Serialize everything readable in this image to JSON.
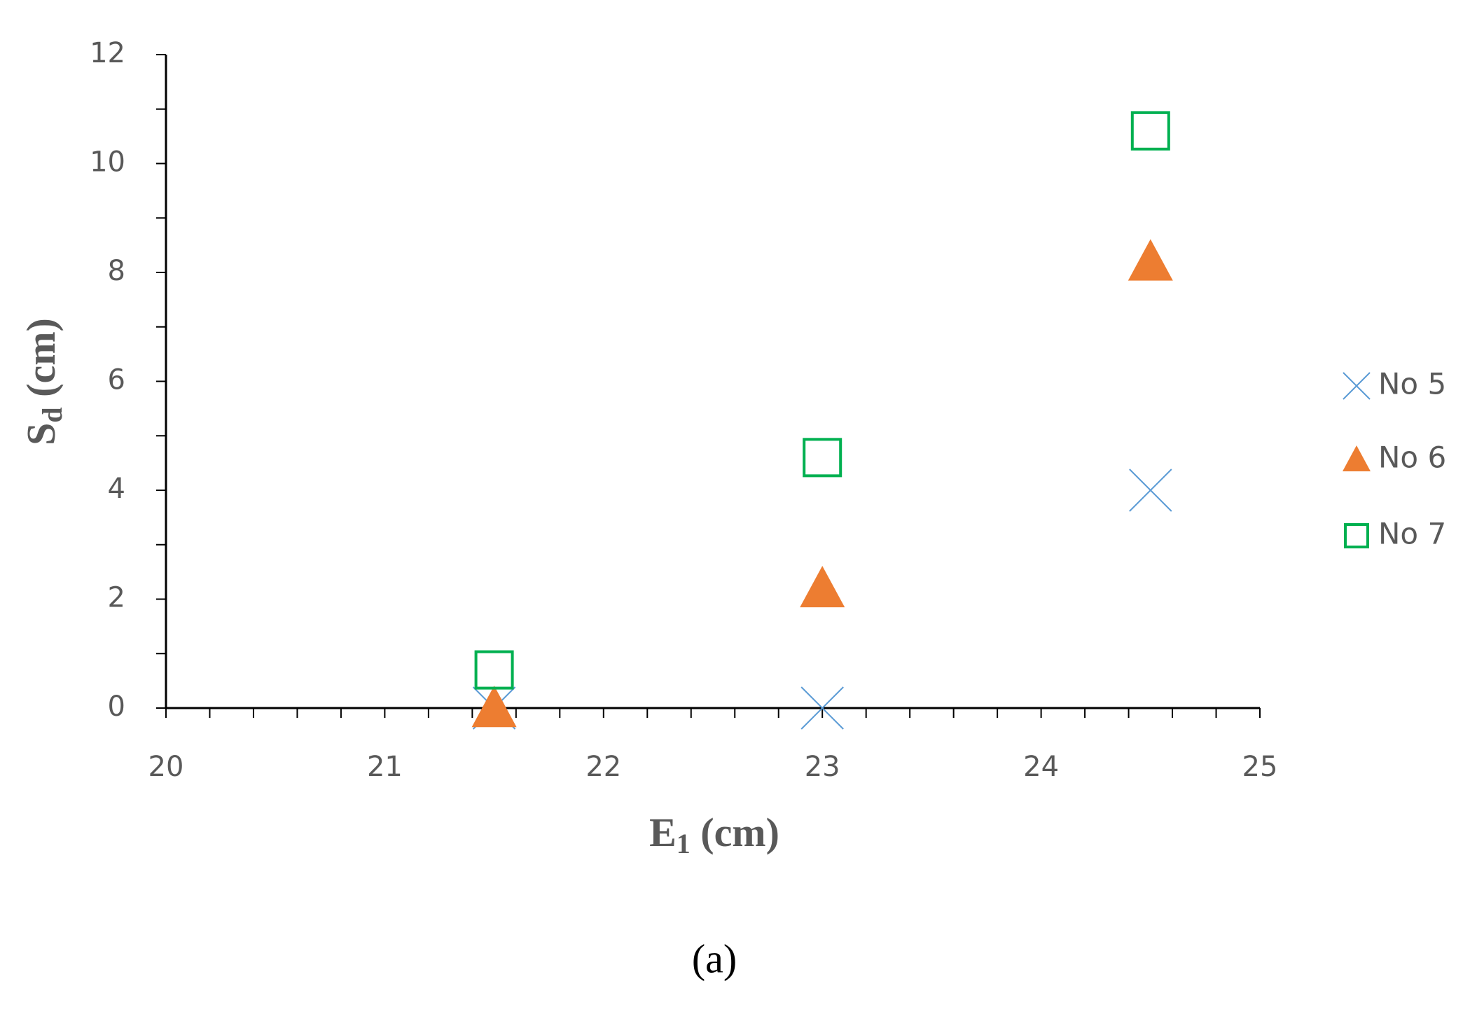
{
  "chart_data": {
    "type": "scatter",
    "x_label": {
      "text": "E",
      "subscript": "1",
      "unit": " (cm)"
    },
    "y_label": {
      "text": "S",
      "subscript": "d",
      "unit": " (cm)"
    },
    "caption": "(a)",
    "xlim": [
      20,
      25
    ],
    "xticks": [
      20,
      21,
      22,
      23,
      24,
      25
    ],
    "ylim": [
      0,
      12
    ],
    "yticks": [
      0,
      2,
      4,
      6,
      8,
      10,
      12
    ],
    "legend": "right",
    "series": [
      {
        "name": "No 5",
        "color": "#5b9bd5",
        "marker": "x",
        "x": [
          21.5,
          23,
          24.5
        ],
        "values": [
          0,
          0,
          4
        ]
      },
      {
        "name": "No 6",
        "color": "#ed7d31",
        "marker": "triangle",
        "x": [
          21.5,
          23,
          24.5
        ],
        "values": [
          0,
          2.2,
          8.2
        ]
      },
      {
        "name": "No 7",
        "color": "#00b050",
        "marker": "square",
        "x": [
          21.5,
          23,
          24.5
        ],
        "values": [
          0.7,
          4.6,
          10.6
        ]
      }
    ]
  }
}
